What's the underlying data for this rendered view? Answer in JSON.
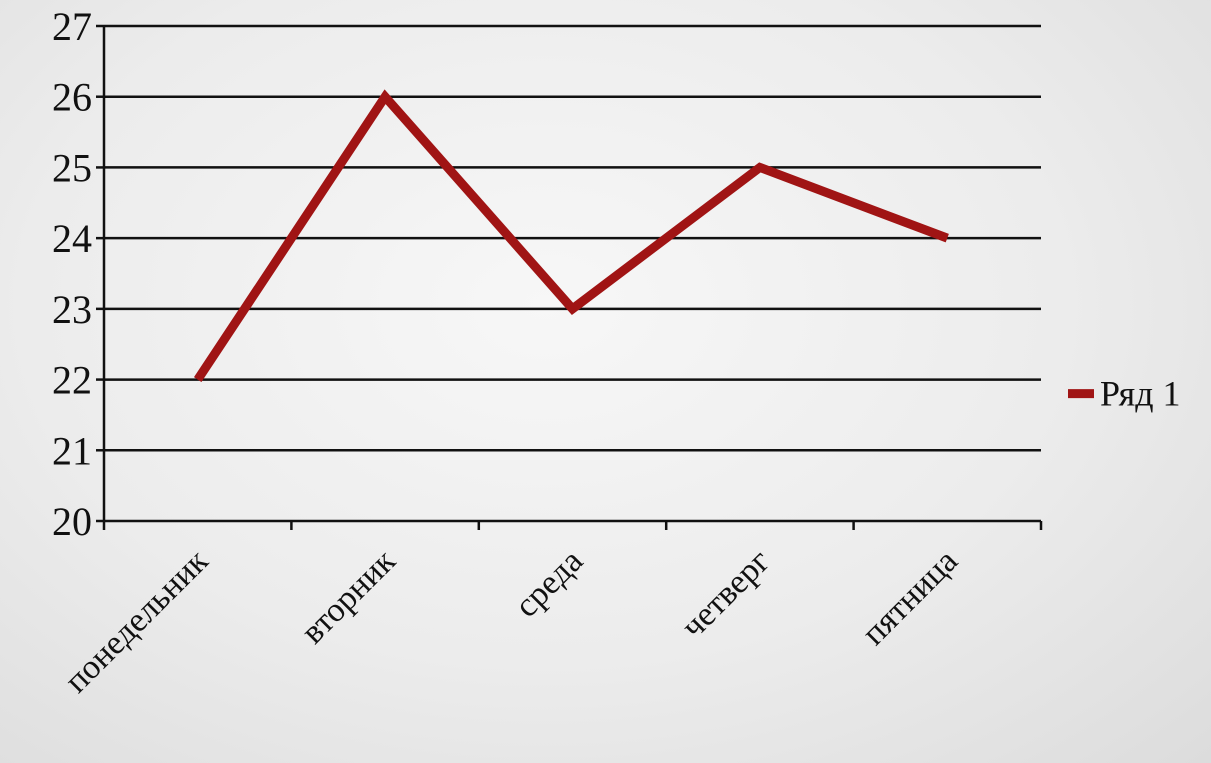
{
  "chart_data": {
    "type": "line",
    "categories": [
      "понедельник",
      "вторник",
      "среда",
      "четверг",
      "пятница"
    ],
    "series": [
      {
        "name": "Ряд 1",
        "values": [
          22,
          26,
          23,
          25,
          24
        ],
        "color": "#a01414"
      }
    ],
    "title": "",
    "xlabel": "",
    "ylabel": "",
    "ylim": [
      20,
      27
    ],
    "yticks": [
      20,
      21,
      22,
      23,
      24,
      25,
      26,
      27
    ],
    "grid": true,
    "legend_position": "right"
  }
}
